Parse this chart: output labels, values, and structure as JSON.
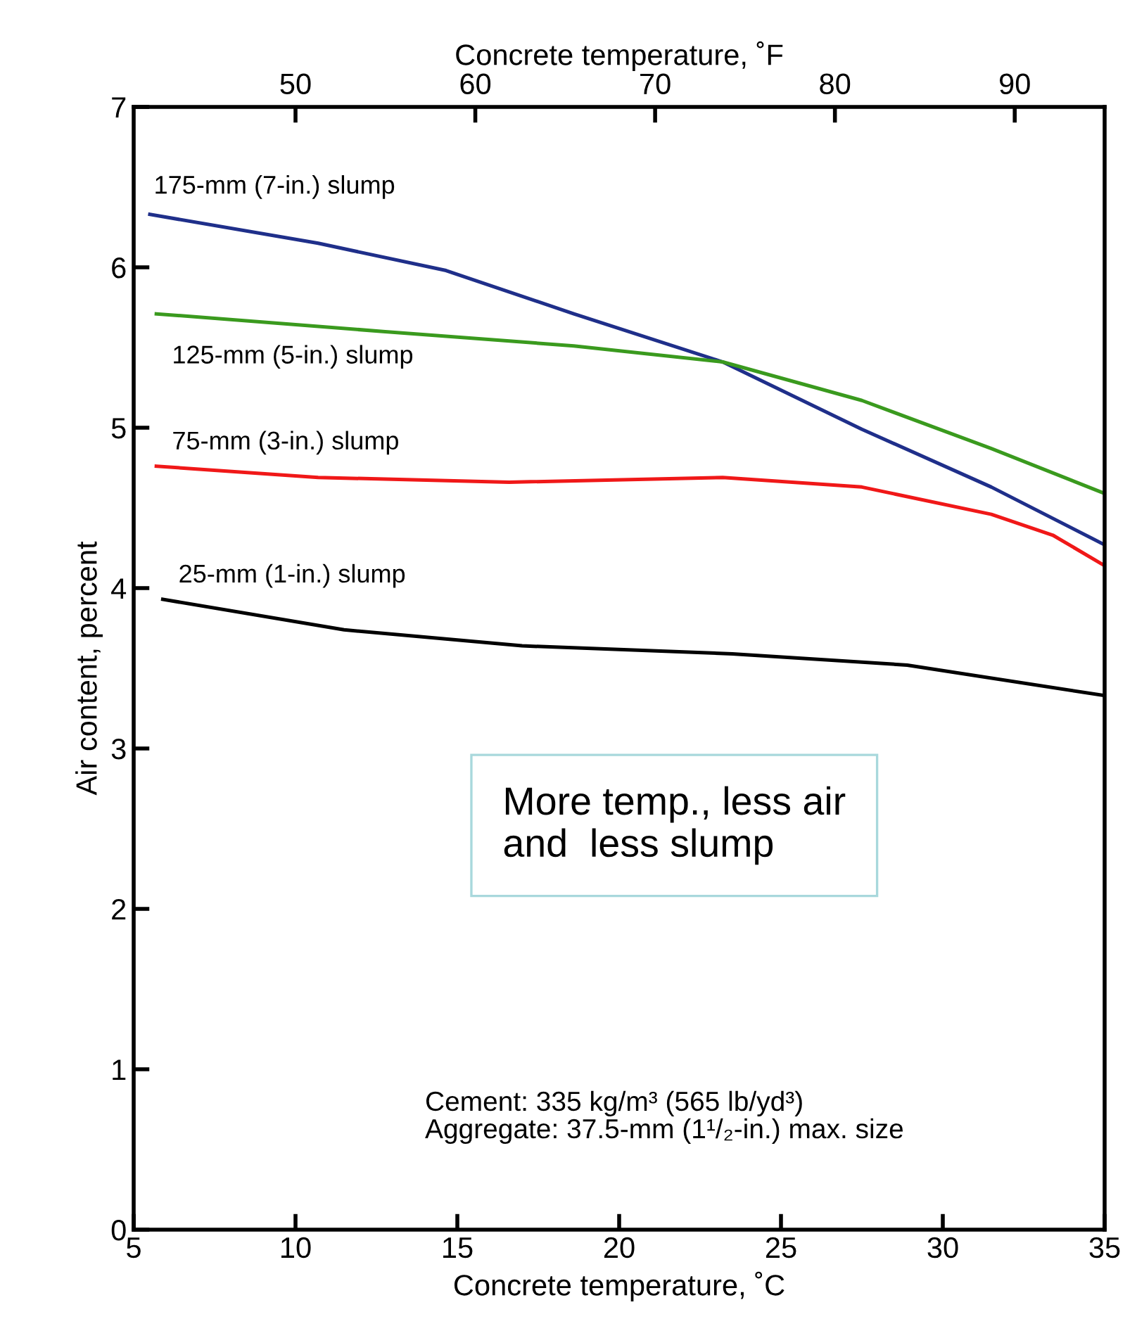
{
  "chart_data": {
    "type": "line",
    "xlabel": "Concrete temperature, ˚C",
    "ylabel": "Air content, percent",
    "x2label": "Concrete temperature, ˚F",
    "xlim": [
      5,
      35
    ],
    "xticks": [
      5,
      10,
      15,
      20,
      25,
      30,
      35
    ],
    "ylim": [
      0,
      7
    ],
    "yticks": [
      0,
      1,
      2,
      3,
      4,
      5,
      6,
      7
    ],
    "x2lim": [
      41,
      95
    ],
    "x2ticks": [
      50,
      60,
      70,
      80,
      90
    ],
    "grid": false,
    "legend": false,
    "marker": "none",
    "line_style": "solid",
    "series": [
      {
        "name": "175-mm (7-in.) slump",
        "color": "#1f2f8a",
        "x": [
          5.5,
          10.7,
          14.65,
          18.6,
          23.2,
          27.5,
          31.5,
          35
        ],
        "values": [
          6.33,
          6.15,
          5.98,
          5.71,
          5.41,
          4.99,
          4.63,
          4.27
        ]
      },
      {
        "name": "125-mm (5-in.) slump",
        "color": "#3a9a1e",
        "x": [
          5.7,
          12.7,
          18.6,
          23.2,
          27.5,
          31.5,
          35
        ],
        "values": [
          5.71,
          5.6,
          5.51,
          5.41,
          5.17,
          4.87,
          4.59
        ]
      },
      {
        "name": "75-mm (3-in.) slump",
        "color": "#f01818",
        "x": [
          5.7,
          10.7,
          16.6,
          23.2,
          27.5,
          31.5,
          33.4,
          35
        ],
        "values": [
          4.76,
          4.69,
          4.66,
          4.69,
          4.63,
          4.46,
          4.33,
          4.14
        ]
      },
      {
        "name": "25-mm (1-in.) slump",
        "color": "#000000",
        "x": [
          5.9,
          11.5,
          17,
          23.5,
          28.9,
          35
        ],
        "values": [
          3.93,
          3.74,
          3.64,
          3.59,
          3.52,
          3.33
        ]
      }
    ],
    "annotations": [
      "More temp., less air\nand  less slump",
      "Cement: 335 kg/m³ (565 lb/yd³)\nAggregate: 37.5-mm (1¹/₂-in.) max. size"
    ]
  }
}
